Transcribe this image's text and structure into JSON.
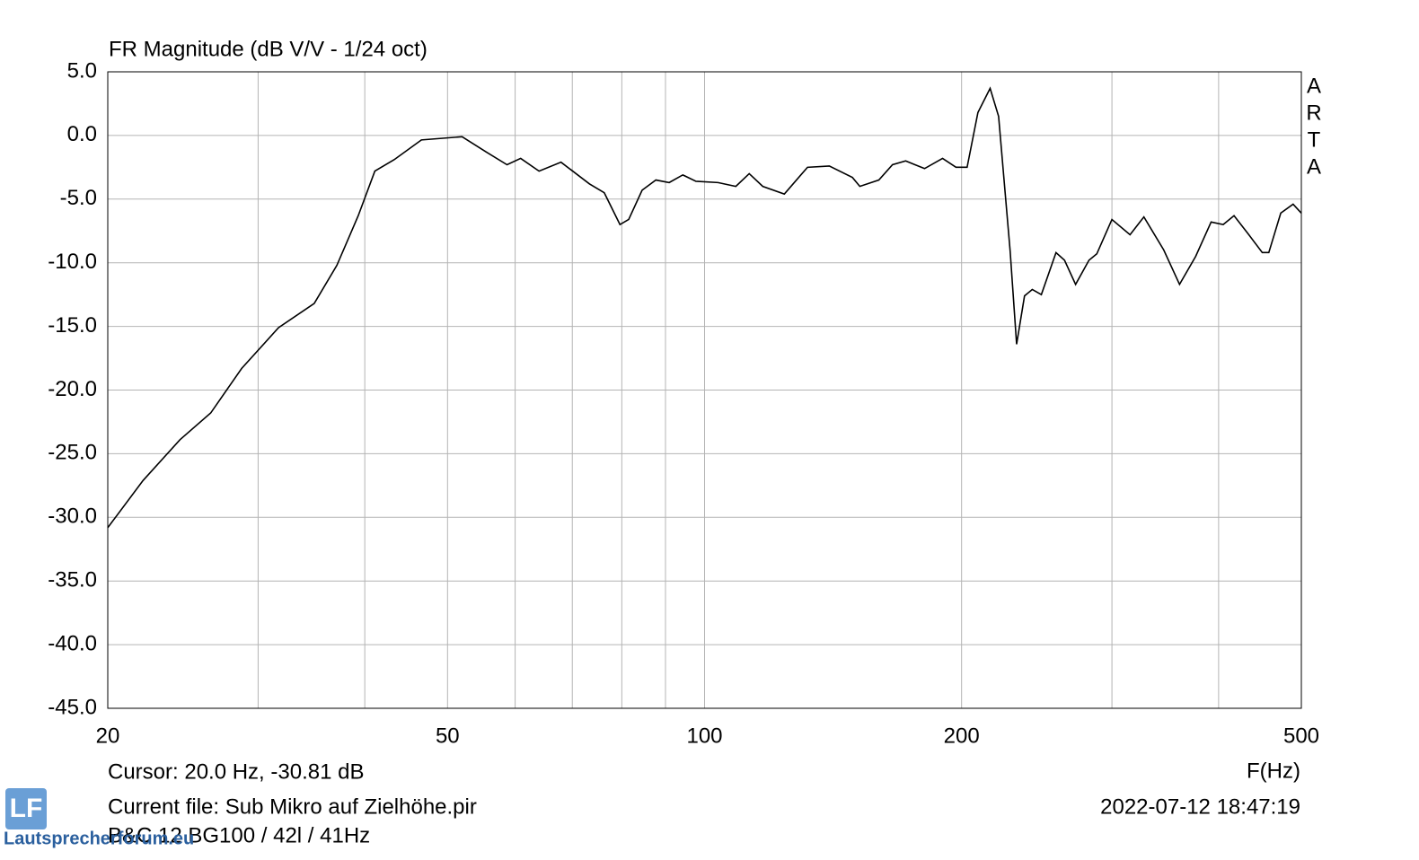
{
  "chart_data": {
    "type": "line",
    "title": "FR Magnitude (dB V/V - 1/24 oct)",
    "x_label": "F(Hz)",
    "side_label": "ARTA",
    "x_scale": "log",
    "grid": true,
    "color": "#000000",
    "xlim": [
      20,
      500
    ],
    "xticks": [
      20,
      50,
      100,
      200,
      500
    ],
    "xgrid_minor": [
      30,
      40,
      60,
      70,
      80,
      90,
      300,
      400
    ],
    "ylim": [
      -45,
      5
    ],
    "yticks": [
      {
        "value": 5,
        "label": "5.0"
      },
      {
        "value": 0,
        "label": "0.0"
      },
      {
        "value": -5,
        "label": "-5.0"
      },
      {
        "value": -10,
        "label": "-10.0"
      },
      {
        "value": -15,
        "label": "-15.0"
      },
      {
        "value": -20,
        "label": "-20.0"
      },
      {
        "value": -25,
        "label": "-25.0"
      },
      {
        "value": -30,
        "label": "-30.0"
      },
      {
        "value": -35,
        "label": "-35.0"
      },
      {
        "value": -40,
        "label": "-40.0"
      },
      {
        "value": -45,
        "label": "-45.0"
      }
    ],
    "x": [
      20,
      22,
      24.3,
      26.4,
      28.7,
      31.7,
      34.9,
      37.1,
      39.3,
      41.1,
      43.3,
      46.6,
      52,
      55.5,
      58.7,
      60.9,
      64,
      67.9,
      73.3,
      76.3,
      79.6,
      81.5,
      84.5,
      87.7,
      90.9,
      94.3,
      97.7,
      103.7,
      108.8,
      112.8,
      117,
      124,
      132,
      140,
      149,
      152,
      160,
      166,
      172,
      181,
      190,
      197,
      203,
      209,
      216,
      221,
      228,
      232,
      237,
      242,
      248,
      258,
      264,
      272,
      282,
      288,
      300,
      315,
      327,
      345,
      360,
      376,
      392,
      405,
      417,
      434,
      450,
      458,
      473,
      489,
      500
    ],
    "values": [
      -30.81,
      -27.1,
      -23.9,
      -21.8,
      -18.3,
      -15.1,
      -13.2,
      -10.2,
      -6.3,
      -2.8,
      -1.9,
      -0.35,
      -0.1,
      -1.3,
      -2.3,
      -1.8,
      -2.8,
      -2.1,
      -3.8,
      -4.5,
      -7.0,
      -6.6,
      -4.3,
      -3.5,
      -3.7,
      -3.1,
      -3.6,
      -3.7,
      -4.0,
      -3.0,
      -4.0,
      -4.6,
      -2.5,
      -2.4,
      -3.3,
      -4.0,
      -3.5,
      -2.3,
      -2.0,
      -2.6,
      -1.8,
      -2.5,
      -2.5,
      1.8,
      3.7,
      1.5,
      -9.1,
      -16.4,
      -12.6,
      -12.1,
      -12.5,
      -9.2,
      -9.8,
      -11.7,
      -9.8,
      -9.3,
      -6.6,
      -7.8,
      -6.4,
      -9.0,
      -11.7,
      -9.5,
      -6.8,
      -7.0,
      -6.3,
      -7.8,
      -9.2,
      -9.2,
      -6.1,
      -5.4,
      -6.1
    ]
  },
  "footer": {
    "cursor": "Cursor: 20.0 Hz, -30.81 dB",
    "current_file": "Current file: Sub Mikro auf Zielhöhe.pir",
    "timestamp": "2022-07-12   18:47:19",
    "description": "B&C 12 BG100 / 42l / 41Hz"
  },
  "watermark": {
    "logo": "LF",
    "site": "Lautsprecherforum.eu"
  }
}
